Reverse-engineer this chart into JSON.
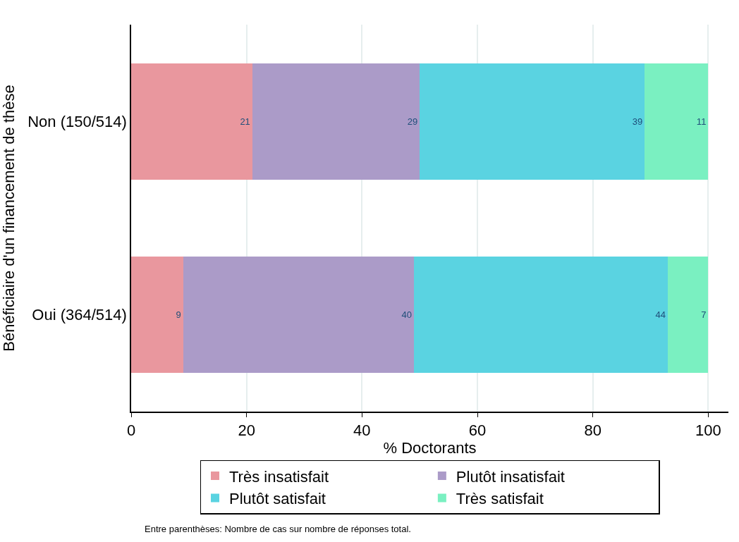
{
  "chart_data": {
    "type": "bar",
    "orientation": "horizontal",
    "stacked": true,
    "xlabel": "% Doctorants",
    "ylabel": "Bénéficiaire d'un financement de thèse",
    "categories": [
      "Non (150/514)",
      "Oui (364/514)"
    ],
    "series": [
      {
        "name": "Très insatisfait",
        "color": "#e9979e",
        "values": [
          21,
          9
        ]
      },
      {
        "name": "Plutôt insatisfait",
        "color": "#ab9bc8",
        "values": [
          29,
          40
        ]
      },
      {
        "name": "Plutôt satisfait",
        "color": "#5ad3e1",
        "values": [
          39,
          44
        ]
      },
      {
        "name": "Très satisfait",
        "color": "#7af0c1",
        "values": [
          11,
          7
        ]
      }
    ],
    "xlim": [
      0,
      103.5
    ],
    "xticks": [
      0,
      20,
      40,
      60,
      80,
      100
    ],
    "grid": "x",
    "legend": "bottom",
    "data_labels": true,
    "annotations": [
      "Entre parenthèses: Nombre de cas sur nombre de réponses total."
    ]
  }
}
